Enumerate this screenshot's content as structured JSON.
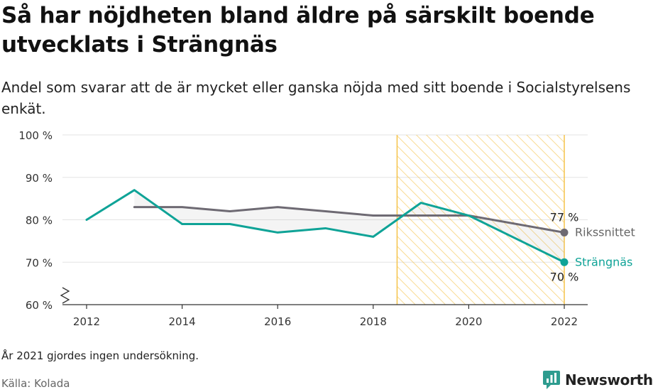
{
  "title": "Så har nöjdheten bland äldre på särskilt boende utvecklats i Strängnäs",
  "subtitle": "Andel som svarar att de är mycket eller ganska nöjda med sitt boende i Socialstyrelsens enkät.",
  "footnote": "År 2021 gjordes ingen undersökning.",
  "source": "Källa: Kolada",
  "brand": "Newsworthy",
  "colors": {
    "riket": "#6e6a73",
    "strangnas": "#0fa397",
    "highlight": "#f5c34a",
    "brand_icon": "#2e9c8f"
  },
  "chart_data": {
    "type": "line",
    "xlim": [
      2012,
      2022
    ],
    "ylim": [
      60,
      100
    ],
    "yticks": [
      60,
      70,
      80,
      90,
      100
    ],
    "ytick_labels": [
      "60 %",
      "70 %",
      "80 %",
      "90 %",
      "100 %"
    ],
    "xticks": [
      2012,
      2014,
      2016,
      2018,
      2020,
      2022
    ],
    "xtick_labels": [
      "2012",
      "2014",
      "2016",
      "2018",
      "2020",
      "2022"
    ],
    "axis_break": true,
    "highlight_range": [
      2018.5,
      2022
    ],
    "series": [
      {
        "name": "Rikssnittet",
        "x": [
          2013,
          2014,
          2015,
          2016,
          2017,
          2018,
          2019,
          2020,
          2022
        ],
        "y": [
          83,
          83,
          82,
          83,
          82,
          81,
          81,
          81,
          77
        ],
        "end_label": "77 %",
        "color_key": "riket"
      },
      {
        "name": "Strängnäs",
        "x": [
          2012,
          2013,
          2014,
          2015,
          2016,
          2017,
          2018,
          2019,
          2020,
          2022
        ],
        "y": [
          80,
          87,
          79,
          79,
          77,
          78,
          76,
          84,
          81,
          70
        ],
        "end_label": "70 %",
        "color_key": "strangnas"
      }
    ]
  }
}
